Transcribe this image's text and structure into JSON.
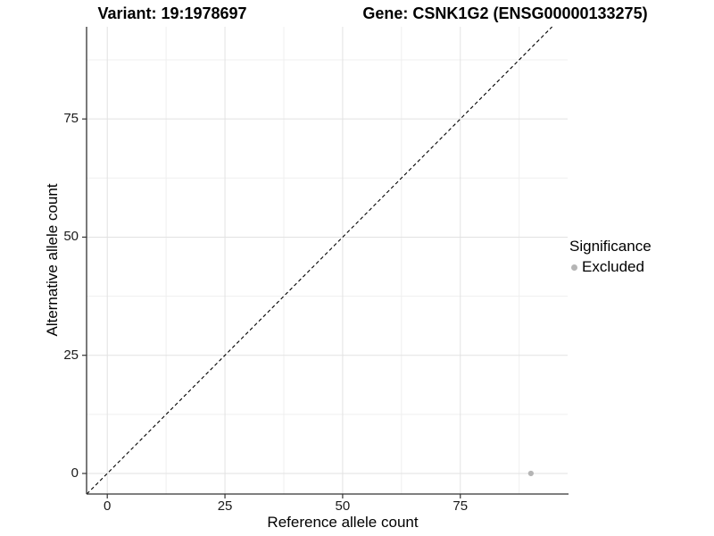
{
  "header": {
    "variant_title": "Variant: 19:1978697",
    "gene_title": "Gene: CSNK1G2 (ENSG00000133275)"
  },
  "legend": {
    "title": "Significance",
    "items": [
      {
        "label": "Excluded",
        "color": "#b5b5b5"
      }
    ]
  },
  "colors": {
    "background": "#ffffff",
    "grid_major": "#e2e2e2",
    "grid_minor": "#efefef",
    "axis_line": "#333333",
    "tick_text": "#1a1a1a",
    "identity_line": "#000000",
    "point": "#b5b5b5"
  },
  "chart_data": {
    "type": "scatter",
    "title": "",
    "xlabel": "Reference allele count",
    "ylabel": "Alternative allele count",
    "xlim": [
      -4.4,
      97.8
    ],
    "ylim": [
      -4.35,
      94.5
    ],
    "x_ticks": [
      0,
      25,
      50,
      75
    ],
    "y_ticks": [
      0,
      25,
      50,
      75
    ],
    "x_minor_ticks": [
      12.5,
      37.5,
      62.5,
      87.5
    ],
    "y_minor_ticks": [
      12.5,
      37.5,
      62.5,
      87.5
    ],
    "grid": true,
    "legend_position": "right",
    "series": [
      {
        "name": "Excluded",
        "color": "#b5b5b5",
        "points": [
          [
            90,
            0
          ]
        ]
      }
    ],
    "reference_line": {
      "type": "identity",
      "style": "dashed",
      "color": "#000000"
    }
  }
}
